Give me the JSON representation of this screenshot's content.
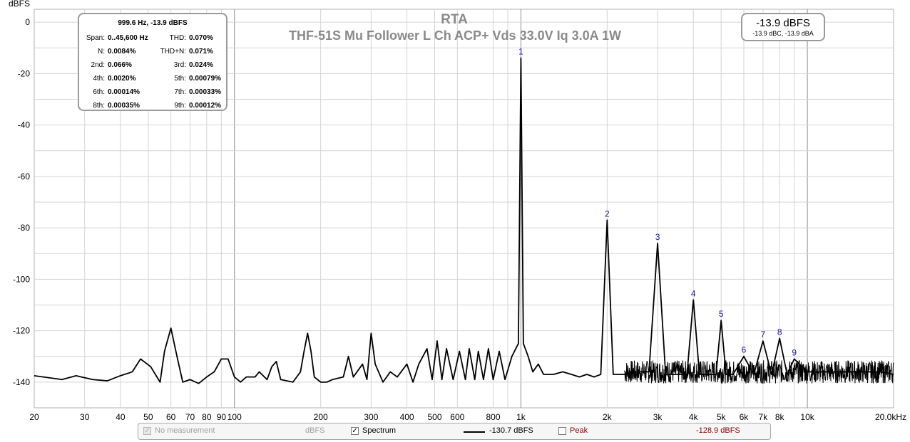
{
  "chart_data": {
    "type": "line",
    "title": "RTA",
    "subtitle": "THF-51S Mu Follower L Ch ACP+ Vds 33.0V Iq 3.0A 1W",
    "ylabel": "dBFS",
    "xlabel": "",
    "xscale": "log",
    "xlim": [
      20,
      20000
    ],
    "ylim": [
      -150,
      5
    ],
    "grid": true,
    "x_ticks": [
      {
        "value": 20,
        "label": "20"
      },
      {
        "value": 30,
        "label": "30"
      },
      {
        "value": 40,
        "label": "40"
      },
      {
        "value": 50,
        "label": "50"
      },
      {
        "value": 60,
        "label": "60"
      },
      {
        "value": 70,
        "label": "70"
      },
      {
        "value": 80,
        "label": "80"
      },
      {
        "value": 90,
        "label": "90"
      },
      {
        "value": 100,
        "label": "100"
      },
      {
        "value": 200,
        "label": "200"
      },
      {
        "value": 300,
        "label": "300"
      },
      {
        "value": 400,
        "label": "400"
      },
      {
        "value": 500,
        "label": "500"
      },
      {
        "value": 600,
        "label": "600"
      },
      {
        "value": 800,
        "label": "800"
      },
      {
        "value": 1000,
        "label": "1k"
      },
      {
        "value": 2000,
        "label": "2k"
      },
      {
        "value": 3000,
        "label": "3k"
      },
      {
        "value": 4000,
        "label": "4k"
      },
      {
        "value": 5000,
        "label": "5k"
      },
      {
        "value": 6000,
        "label": "6k"
      },
      {
        "value": 7000,
        "label": "7k"
      },
      {
        "value": 8000,
        "label": "8k"
      },
      {
        "value": 10000,
        "label": "10k"
      },
      {
        "value": 20000,
        "label": "20.0kHz"
      }
    ],
    "minor_x_grid": [
      900,
      9000
    ],
    "y_ticks": [
      {
        "value": 0,
        "label": "0"
      },
      {
        "value": -20,
        "label": "-20"
      },
      {
        "value": -40,
        "label": "-40"
      },
      {
        "value": -60,
        "label": "-60"
      },
      {
        "value": -80,
        "label": "-80"
      },
      {
        "value": -100,
        "label": "-100"
      },
      {
        "value": -120,
        "label": "-120"
      },
      {
        "value": -140,
        "label": "-140"
      }
    ],
    "y_grid": [
      10,
      -10,
      -30,
      -50,
      -70,
      -90,
      -110,
      -130
    ],
    "series": [
      {
        "color": "#000000",
        "x": [
          20,
          25,
          28,
          32,
          36,
          40,
          44,
          47,
          51,
          55,
          57,
          60,
          63,
          66,
          70,
          75,
          80,
          85,
          90,
          95,
          100,
          105,
          110,
          118,
          122,
          130,
          135,
          140,
          145,
          160,
          170,
          175,
          180,
          185,
          190,
          200,
          210,
          220,
          240,
          250,
          260,
          280,
          290,
          300,
          310,
          330,
          350,
          370,
          400,
          420,
          440,
          470,
          490,
          510,
          530,
          550,
          580,
          610,
          640,
          660,
          690,
          710,
          740,
          770,
          800,
          840,
          880,
          930,
          980,
          1000,
          1020,
          1060,
          1100,
          1150,
          1200,
          1300,
          1400,
          1500,
          1600,
          1700,
          1800,
          1900,
          2000,
          2100,
          2200,
          2400,
          2600,
          2800,
          3000,
          3200,
          3400,
          3600,
          3800,
          4000,
          4200,
          4500,
          4800,
          5000,
          5200,
          5500,
          6000,
          6500,
          7000,
          7500,
          8000,
          8500,
          9000,
          10000,
          11000,
          12000,
          14000,
          16000,
          18000,
          20000
        ],
        "y": [
          -137.5,
          -139,
          -137.5,
          -139,
          -139.5,
          -137.5,
          -136,
          -131,
          -134,
          -140,
          -128,
          -119,
          -130,
          -140,
          -139,
          -140.5,
          -138,
          -136,
          -131,
          -131,
          -138,
          -140,
          -138,
          -138,
          -136,
          -139,
          -134,
          -132,
          -139,
          -140,
          -136,
          -128,
          -121,
          -128,
          -138,
          -140,
          -140,
          -139,
          -138,
          -130,
          -138,
          -133,
          -139,
          -121,
          -133,
          -140,
          -136,
          -138,
          -133,
          -140,
          -133,
          -127,
          -139,
          -124,
          -139,
          -127,
          -139,
          -128,
          -139,
          -127,
          -139,
          -128,
          -139,
          -127,
          -139,
          -128,
          -139,
          -130,
          -125,
          -14,
          -125,
          -130,
          -136,
          -133,
          -137,
          -137,
          -136,
          -137,
          -138,
          -137,
          -138,
          -137,
          -77,
          -137,
          -137,
          -137,
          -136,
          -136,
          -86,
          -137,
          -137,
          -137,
          -137,
          -108,
          -137,
          -137,
          -137,
          -116,
          -137,
          -137,
          -130,
          -137,
          -124,
          -137,
          -123,
          -137,
          -131,
          -136,
          -136,
          -136,
          -136,
          -136,
          -136,
          -137
        ]
      }
    ],
    "harmonics": [
      {
        "label": "1",
        "x": 1000,
        "y": -14
      },
      {
        "label": "2",
        "x": 2000,
        "y": -77
      },
      {
        "label": "3",
        "x": 3000,
        "y": -86
      },
      {
        "label": "4",
        "x": 4000,
        "y": -108
      },
      {
        "label": "5",
        "x": 5000,
        "y": -116
      },
      {
        "label": "6",
        "x": 6000,
        "y": -130
      },
      {
        "label": "7",
        "x": 7000,
        "y": -124
      },
      {
        "label": "8",
        "x": 8000,
        "y": -123
      },
      {
        "label": "9",
        "x": 9000,
        "y": -131
      }
    ]
  },
  "stats": {
    "header": "999.6 Hz, -13.9 dBFS",
    "rows": [
      {
        "l1": "Span:",
        "v1": "0..45,600 Hz",
        "l2": "THD:",
        "v2": "0.070%"
      },
      {
        "l1": "N:",
        "v1": "0.0084%",
        "l2": "THD+N:",
        "v2": "0.071%"
      },
      {
        "l1": "2nd:",
        "v1": "0.066%",
        "l2": "3rd:",
        "v2": "0.024%"
      },
      {
        "l1": "4th:",
        "v1": "0.0020%",
        "l2": "5th:",
        "v2": "0.00079%"
      },
      {
        "l1": "6th:",
        "v1": "0.00014%",
        "l2": "7th:",
        "v2": "0.00033%"
      },
      {
        "l1": "8th:",
        "v1": "0.00035%",
        "l2": "9th:",
        "v2": "0.00012%"
      }
    ]
  },
  "level": {
    "main": "-13.9 dBFS",
    "sub": "-13.9 dBC, -13.9 dBA"
  },
  "legend": {
    "no_measurement": "No measurement",
    "no_measurement_unit": "dBFS",
    "spectrum_label": "Spectrum",
    "spectrum_value": "-130.7 dBFS",
    "peak_label": "Peak",
    "peak_value": "-128.9 dBFS",
    "peak_color": "#8b0000",
    "spectrum_checked": true,
    "peak_checked": false
  }
}
